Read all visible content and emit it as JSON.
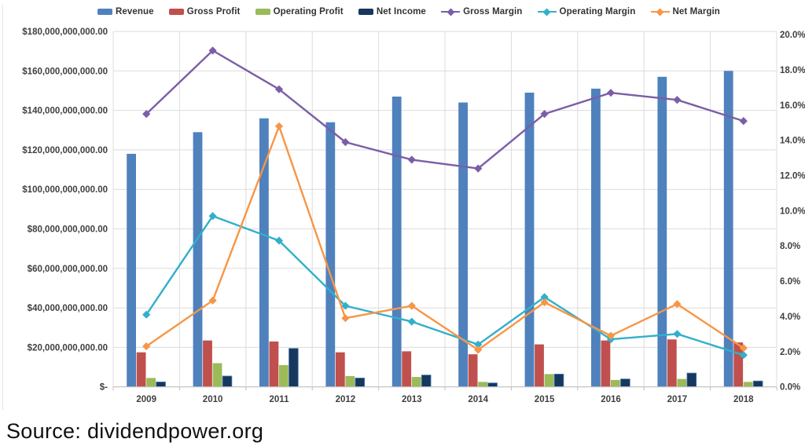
{
  "source": {
    "text": "Source: dividendpower.org"
  },
  "chart_data": {
    "type": "combo-bar-line",
    "categories": [
      "2009",
      "2010",
      "2011",
      "2012",
      "2013",
      "2014",
      "2015",
      "2016",
      "2017",
      "2018"
    ],
    "bar_series": [
      {
        "name": "Revenue",
        "color": "#4F81BD",
        "values_billions": [
          118,
          129,
          136,
          134,
          147,
          144,
          149,
          151,
          157,
          160
        ]
      },
      {
        "name": "Gross Profit",
        "color": "#C0504D",
        "values_billions": [
          17.5,
          23.5,
          23,
          17.5,
          18,
          16.5,
          21.5,
          23.5,
          24,
          22.5
        ]
      },
      {
        "name": "Operating Profit",
        "color": "#9BBB59",
        "values_billions": [
          4.5,
          12,
          11,
          5.5,
          5,
          2.5,
          6.5,
          3.5,
          4,
          2.5
        ]
      },
      {
        "name": "Net Income",
        "color": "#17375D",
        "values_billions": [
          2.5,
          5.5,
          19.5,
          4.5,
          6,
          2,
          6.5,
          4,
          7,
          3
        ]
      }
    ],
    "line_series": [
      {
        "name": "Gross Margin",
        "color": "#7B5EA7",
        "values_percent": [
          15.5,
          19.1,
          16.9,
          13.9,
          12.9,
          12.4,
          15.5,
          16.7,
          16.3,
          15.1
        ]
      },
      {
        "name": "Operating Margin",
        "color": "#31B0CB",
        "values_percent": [
          4.1,
          9.7,
          8.3,
          4.6,
          3.7,
          2.4,
          5.1,
          2.7,
          3.0,
          1.8
        ]
      },
      {
        "name": "Net Margin",
        "color": "#F79646",
        "values_percent": [
          2.3,
          4.9,
          14.8,
          3.9,
          4.6,
          2.1,
          4.8,
          2.9,
          4.7,
          2.2
        ]
      }
    ],
    "left_axis": {
      "labels": [
        "$180,000,000,000.00",
        "$160,000,000,000.00",
        "$140,000,000,000.00",
        "$120,000,000,000.00",
        "$100,000,000,000.00",
        "$80,000,000,000.00",
        "$60,000,000,000.00",
        "$40,000,000,000.00",
        "$20,000,000,000.00",
        "$-"
      ],
      "min_billions": 0,
      "max_billions": 180,
      "step_billions": 20
    },
    "right_axis": {
      "labels": [
        "20.0%",
        "18.0%",
        "16.0%",
        "14.0%",
        "12.0%",
        "10.0%",
        "8.0%",
        "6.0%",
        "4.0%",
        "2.0%",
        "0.0%"
      ],
      "min_percent": 0,
      "max_percent": 20,
      "step_percent": 2
    },
    "grid": {
      "horizontal": true,
      "vertical": true,
      "color": "#DCDCDC"
    },
    "legend_position": "top"
  }
}
